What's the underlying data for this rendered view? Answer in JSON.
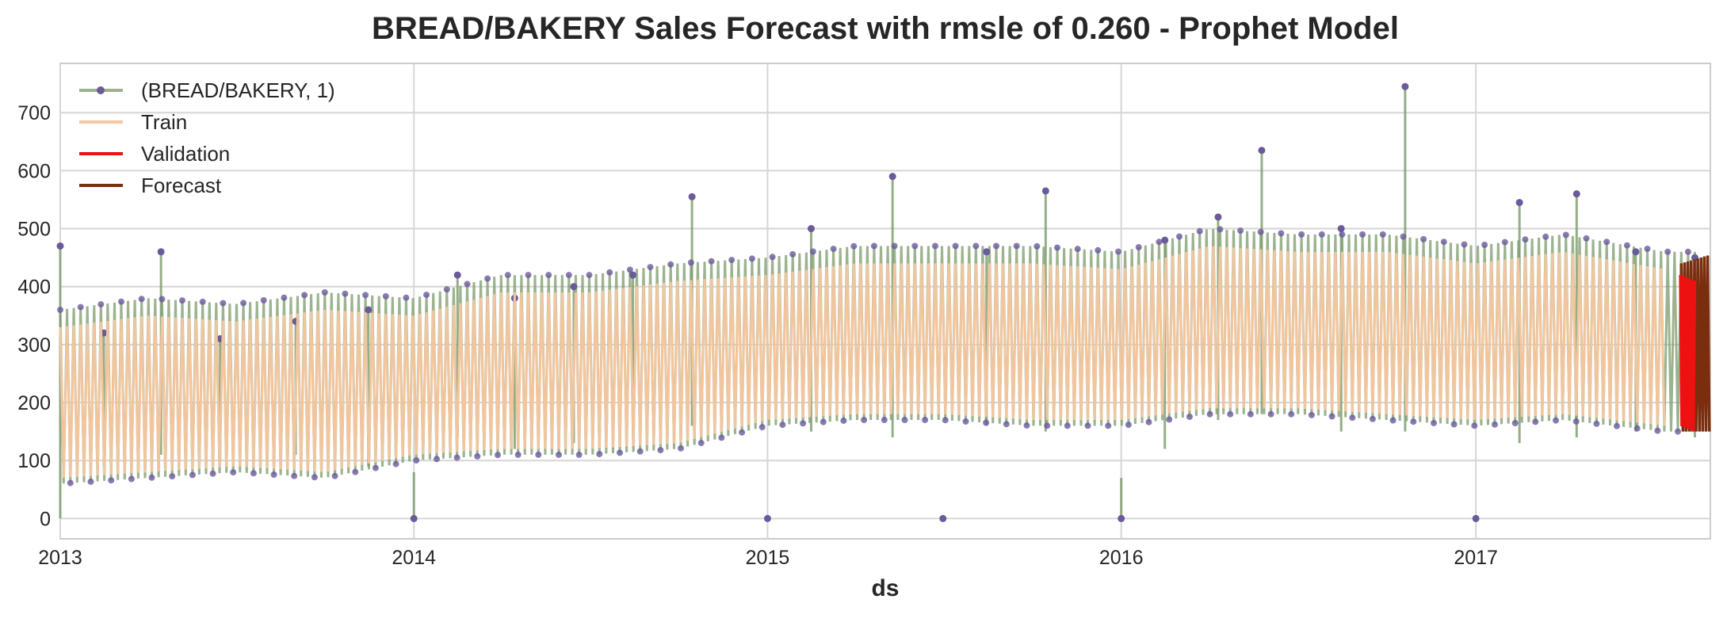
{
  "chart_data": {
    "type": "line",
    "title": "BREAD/BAKERY Sales Forecast with rmsle of 0.260 - Prophet Model",
    "xlabel": "ds",
    "ylabel": "",
    "xlim": [
      "2013-01-01",
      "2017-08-31"
    ],
    "ylim": [
      -35,
      785
    ],
    "x_ticks": [
      "2013",
      "2014",
      "2015",
      "2016",
      "2017"
    ],
    "y_ticks": [
      0,
      100,
      200,
      300,
      400,
      500,
      600,
      700
    ],
    "grid": true,
    "legend_position": "top-left",
    "series": [
      {
        "name": "(BREAD/BAKERY, 1)",
        "color": "#7a9a6a",
        "marker_color": "#6a5a9a",
        "x": [
          "2013-01-01",
          "2013-02-15",
          "2013-04-15",
          "2013-06-15",
          "2013-09-01",
          "2013-11-15",
          "2014-01-01",
          "2014-02-15",
          "2014-04-15",
          "2014-06-15",
          "2014-08-15",
          "2014-10-15",
          "2015-01-01",
          "2015-02-15",
          "2015-05-10",
          "2015-07-01",
          "2015-08-15",
          "2015-10-15",
          "2016-01-01",
          "2016-02-15",
          "2016-04-10",
          "2016-05-25",
          "2016-08-15",
          "2016-10-20",
          "2017-01-01",
          "2017-02-15",
          "2017-04-15",
          "2017-06-15",
          "2017-08-15"
        ],
        "y": [
          470,
          320,
          460,
          310,
          340,
          360,
          0,
          420,
          380,
          400,
          420,
          555,
          0,
          500,
          590,
          0,
          460,
          565,
          0,
          480,
          520,
          635,
          500,
          745,
          0,
          545,
          560,
          460,
          450
        ],
        "lows": [
          0,
          90,
          110,
          100,
          110,
          90,
          80,
          140,
          120,
          130,
          150,
          160,
          0,
          150,
          140,
          0,
          160,
          150,
          70,
          120,
          170,
          180,
          150,
          150,
          0,
          130,
          140,
          150,
          140
        ]
      },
      {
        "name": "Train",
        "color": "#f5c7a0",
        "x": [
          "2013-01-01",
          "2013-04-01",
          "2013-07-01",
          "2013-10-01",
          "2014-01-01",
          "2014-04-01",
          "2014-07-01",
          "2014-10-01",
          "2015-01-01",
          "2015-04-01",
          "2015-07-01",
          "2015-10-01",
          "2016-01-01",
          "2016-04-01",
          "2016-07-01",
          "2016-10-01",
          "2017-01-01",
          "2017-04-01",
          "2017-07-15"
        ],
        "high": [
          330,
          350,
          340,
          360,
          350,
          390,
          390,
          410,
          420,
          440,
          440,
          440,
          430,
          470,
          460,
          460,
          440,
          460,
          430
        ],
        "low": [
          70,
          80,
          90,
          80,
          110,
          120,
          120,
          130,
          170,
          180,
          180,
          170,
          170,
          190,
          190,
          180,
          170,
          180,
          160
        ]
      },
      {
        "name": "Validation",
        "color": "#ee1111",
        "x": [
          "2017-07-31",
          "2017-08-15"
        ],
        "high": [
          420,
          410
        ],
        "low": [
          160,
          150
        ]
      },
      {
        "name": "Forecast",
        "color": "#7a2e0e",
        "x": [
          "2017-08-01",
          "2017-08-31"
        ],
        "high": [
          440,
          455
        ],
        "low": [
          150,
          150
        ]
      }
    ]
  }
}
